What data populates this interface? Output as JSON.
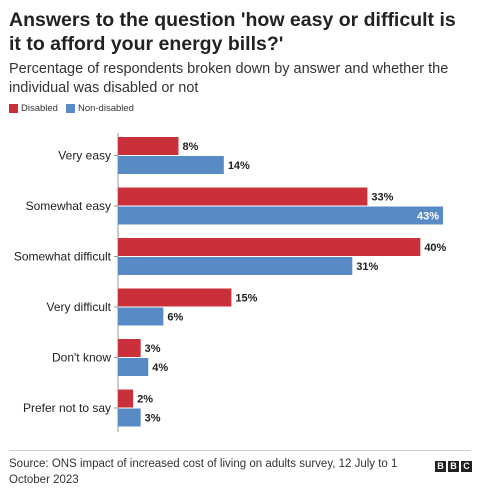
{
  "colors": {
    "disabled": "#c9303a",
    "non_disabled": "#588bc5"
  },
  "chart_data": {
    "type": "bar",
    "orientation": "horizontal",
    "title": "Answers to the question 'how easy or difficult is it to afford your energy bills?'",
    "subtitle": "Percentage of respondents broken down by answer and whether the individual was disabled or not",
    "categories": [
      "Very easy",
      "Somewhat easy",
      "Somewhat difficult",
      "Very difficult",
      "Don't know",
      "Prefer not to say"
    ],
    "series": [
      {
        "name": "Disabled",
        "values": [
          8,
          33,
          40,
          15,
          3,
          2
        ],
        "labels": [
          "8%",
          "33%",
          "40%",
          "15%",
          "3%",
          "2%"
        ]
      },
      {
        "name": "Non-disabled",
        "values": [
          14,
          43,
          31,
          6,
          4,
          3
        ],
        "labels": [
          "14%",
          "43%",
          "31%",
          "6%",
          "4%",
          "3%"
        ]
      }
    ],
    "xlim": [
      0,
      43
    ],
    "legend": "top-left",
    "grid": false
  },
  "source": "Source: ONS impact of increased cost of living on adults survey, 12 July to 1 October 2023",
  "logo": [
    "B",
    "B",
    "C"
  ]
}
